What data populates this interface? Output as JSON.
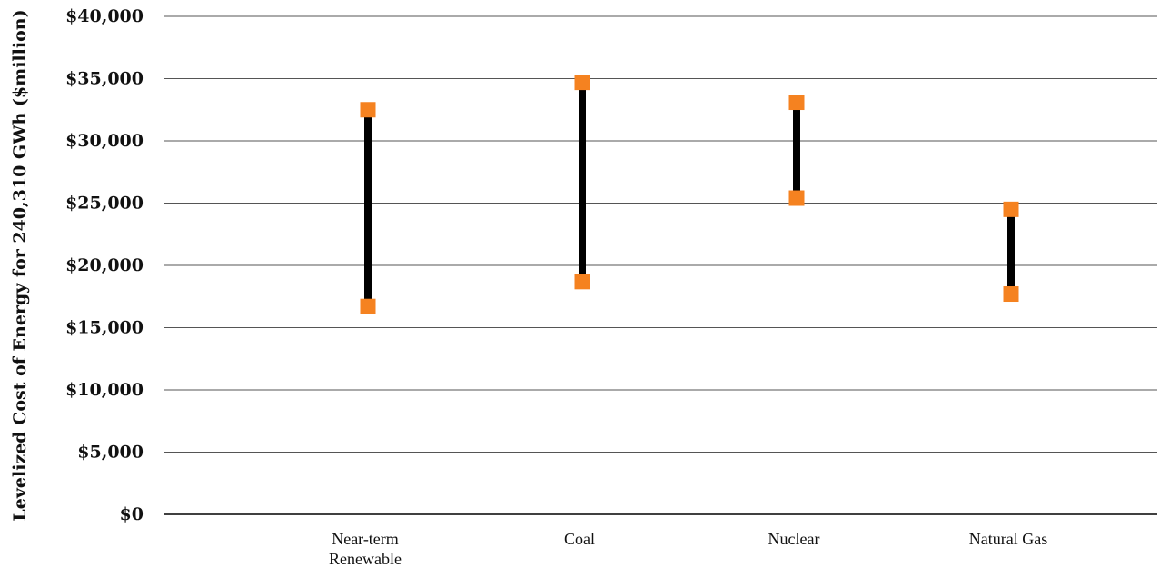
{
  "chart_data": {
    "type": "range",
    "ylabel": "Levelized Cost of Energy for 240,310 GWh ($million)",
    "xlabel": "",
    "ylim": [
      0,
      40000
    ],
    "y_ticks": [
      0,
      5000,
      10000,
      15000,
      20000,
      25000,
      30000,
      35000,
      40000
    ],
    "y_tick_labels": [
      "$0",
      "$5,000",
      "$10,000",
      "$15,000",
      "$20,000",
      "$25,000",
      "$30,000",
      "$35,000",
      "$40,000"
    ],
    "grid": true,
    "categories": [
      {
        "label_lines": [
          "Near-term",
          "Renewable"
        ],
        "low": 16700,
        "high": 32500
      },
      {
        "label_lines": [
          "Coal"
        ],
        "low": 18700,
        "high": 34700
      },
      {
        "label_lines": [
          "Nuclear"
        ],
        "low": 25400,
        "high": 33100
      },
      {
        "label_lines": [
          "Natural Gas"
        ],
        "low": 17700,
        "high": 24500
      }
    ],
    "colors": {
      "marker": "#f58220",
      "range_line": "#000000",
      "grid": "#555555",
      "axis": "#000000"
    }
  }
}
